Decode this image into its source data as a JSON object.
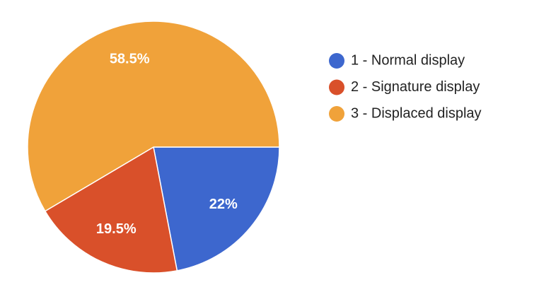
{
  "chart_data": {
    "type": "pie",
    "categories": [
      "1 - Normal display",
      "2 - Signature display",
      "3 - Displaced display"
    ],
    "values": [
      22,
      19.5,
      58.5
    ],
    "value_labels": [
      "22%",
      "19.5%",
      "58.5%"
    ],
    "colors": [
      "#3d67ce",
      "#d9502a",
      "#f0a23a"
    ]
  }
}
